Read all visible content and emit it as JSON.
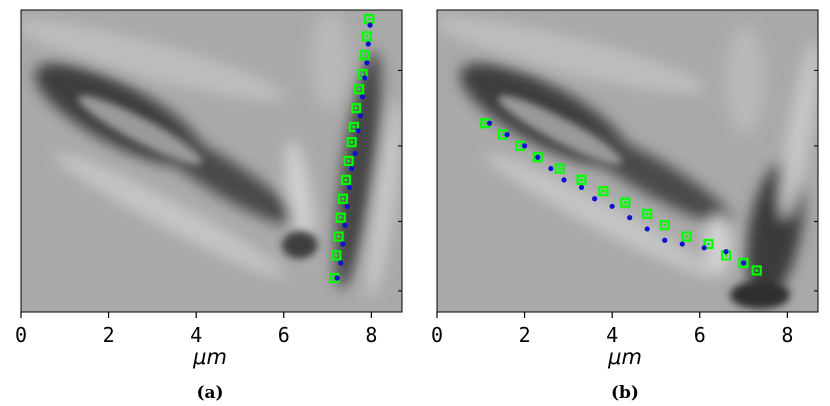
{
  "figure": {
    "panels": [
      {
        "id": "a",
        "caption": "(a)",
        "xlabel": "μm"
      },
      {
        "id": "b",
        "caption": "(b)",
        "xlabel": "μm"
      }
    ],
    "colors": {
      "trace_green": "#00ff00",
      "trace_blue": "#1010d0",
      "background": "#a8a8a8"
    }
  },
  "chart_data": [
    {
      "type": "scatter",
      "title": "",
      "xlabel": "μm",
      "ylabel": "",
      "caption": "(a)",
      "xlim": [
        0,
        8.7
      ],
      "xticks": [
        0,
        2,
        4,
        6,
        8
      ],
      "xtick_labels": [
        "0",
        "2",
        "4",
        "6",
        "8"
      ],
      "series": [
        {
          "marker": "green-square-with-dot",
          "color": "#00ff00",
          "points": [
            [
              7.95,
              0.12
            ],
            [
              7.9,
              0.35
            ],
            [
              7.85,
              0.6
            ],
            [
              7.8,
              0.85
            ],
            [
              7.72,
              1.05
            ],
            [
              7.65,
              1.3
            ],
            [
              7.6,
              1.55
            ],
            [
              7.55,
              1.75
            ],
            [
              7.48,
              2.0
            ],
            [
              7.42,
              2.25
            ],
            [
              7.35,
              2.5
            ],
            [
              7.3,
              2.75
            ],
            [
              7.25,
              3.0
            ],
            [
              7.2,
              3.25
            ],
            [
              7.15,
              3.55
            ]
          ]
        },
        {
          "marker": "blue-dot",
          "color": "#1010d0",
          "points": [
            [
              7.97,
              0.2
            ],
            [
              7.93,
              0.45
            ],
            [
              7.9,
              0.7
            ],
            [
              7.85,
              0.9
            ],
            [
              7.8,
              1.15
            ],
            [
              7.75,
              1.4
            ],
            [
              7.7,
              1.6
            ],
            [
              7.63,
              1.9
            ],
            [
              7.55,
              2.1
            ],
            [
              7.5,
              2.35
            ],
            [
              7.45,
              2.6
            ],
            [
              7.4,
              2.85
            ],
            [
              7.35,
              3.1
            ],
            [
              7.3,
              3.35
            ],
            [
              7.22,
              3.55
            ]
          ]
        }
      ]
    },
    {
      "type": "scatter",
      "title": "",
      "xlabel": "μm",
      "ylabel": "",
      "caption": "(b)",
      "xlim": [
        0,
        8.7
      ],
      "xticks": [
        0,
        2,
        4,
        6,
        8
      ],
      "xtick_labels": [
        "0",
        "2",
        "4",
        "6",
        "8"
      ],
      "series": [
        {
          "marker": "green-square-with-dot",
          "color": "#00ff00",
          "points": [
            [
              1.1,
              1.5
            ],
            [
              1.5,
              1.65
            ],
            [
              1.9,
              1.8
            ],
            [
              2.3,
              1.95
            ],
            [
              2.8,
              2.1
            ],
            [
              3.3,
              2.25
            ],
            [
              3.8,
              2.4
            ],
            [
              4.3,
              2.55
            ],
            [
              4.8,
              2.7
            ],
            [
              5.2,
              2.85
            ],
            [
              5.7,
              3.0
            ],
            [
              6.2,
              3.1
            ],
            [
              6.6,
              3.25
            ],
            [
              7.0,
              3.35
            ],
            [
              7.3,
              3.45
            ]
          ]
        },
        {
          "marker": "blue-dot",
          "color": "#1010d0",
          "points": [
            [
              1.2,
              1.5
            ],
            [
              1.6,
              1.65
            ],
            [
              2.0,
              1.8
            ],
            [
              2.3,
              1.95
            ],
            [
              2.6,
              2.1
            ],
            [
              2.9,
              2.25
            ],
            [
              3.3,
              2.35
            ],
            [
              3.6,
              2.5
            ],
            [
              4.0,
              2.6
            ],
            [
              4.4,
              2.75
            ],
            [
              4.8,
              2.9
            ],
            [
              5.2,
              3.05
            ],
            [
              5.6,
              3.1
            ],
            [
              6.1,
              3.15
            ],
            [
              6.6,
              3.2
            ],
            [
              7.0,
              3.35
            ]
          ]
        }
      ]
    }
  ]
}
